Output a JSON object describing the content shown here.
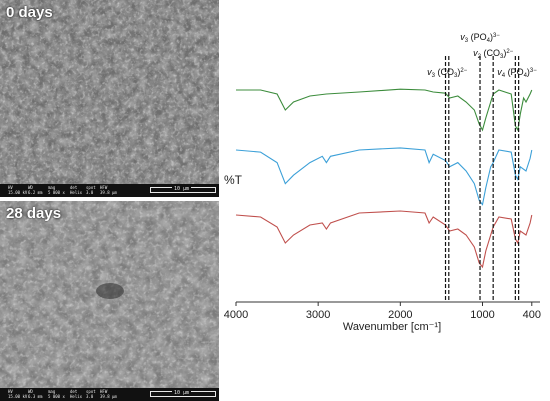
{
  "sem": {
    "top_label": "0 days",
    "bottom_label": "28 days",
    "databar_fields": [
      {
        "key": "HV",
        "top": "15.00 kV",
        "bottom": "15.00 kV"
      },
      {
        "key": "WD",
        "top": "6.2 mm",
        "bottom": "6.3 mm"
      },
      {
        "key": "mag",
        "top": "5 000 x",
        "bottom": "5 000 x"
      },
      {
        "key": "det",
        "top": "Helix",
        "bottom": "Helix"
      },
      {
        "key": "spot",
        "top": "3.0",
        "bottom": "3.0"
      },
      {
        "key": "HFW",
        "top": "39.8 µm",
        "bottom": "39.8 µm"
      }
    ],
    "scale_label": "10 µm"
  },
  "chart_data": {
    "type": "line",
    "ylabel": "%T",
    "xlabel": "Wavenumber [cm⁻¹]",
    "xlim": [
      4000,
      300
    ],
    "x_reversed": true,
    "x_ticks": [
      4000,
      3000,
      2000,
      1000,
      400
    ],
    "y_ticks_shown": false,
    "grid": false,
    "legend": "none",
    "series": [
      {
        "color": "#3c8c3c",
        "offset": 0,
        "points": [
          [
            4000,
            0
          ],
          [
            3700,
            0
          ],
          [
            3500,
            -0.1
          ],
          [
            3400,
            -0.5
          ],
          [
            3300,
            -0.3
          ],
          [
            3100,
            -0.15
          ],
          [
            2900,
            -0.1
          ],
          [
            2500,
            -0.05
          ],
          [
            2000,
            0.02
          ],
          [
            1700,
            0.0
          ],
          [
            1600,
            -0.05
          ],
          [
            1450,
            -0.08
          ],
          [
            1400,
            -0.2
          ],
          [
            1300,
            -0.15
          ],
          [
            1200,
            -0.3
          ],
          [
            1100,
            -0.5
          ],
          [
            1040,
            -0.85
          ],
          [
            1000,
            -1.0
          ],
          [
            960,
            -0.7
          ],
          [
            900,
            -0.3
          ],
          [
            870,
            -0.1
          ],
          [
            800,
            0.0
          ],
          [
            650,
            -0.1
          ],
          [
            600,
            -0.9
          ],
          [
            570,
            -1.0
          ],
          [
            540,
            -0.6
          ],
          [
            500,
            -0.2
          ],
          [
            470,
            -0.3
          ],
          [
            420,
            -0.1
          ],
          [
            400,
            0.0
          ]
        ]
      },
      {
        "color": "#3ca0d8",
        "offset": 1,
        "points": [
          [
            4000,
            0
          ],
          [
            3700,
            -0.05
          ],
          [
            3500,
            -0.3
          ],
          [
            3400,
            -0.8
          ],
          [
            3300,
            -0.6
          ],
          [
            3100,
            -0.3
          ],
          [
            2950,
            -0.15
          ],
          [
            2900,
            -0.3
          ],
          [
            2850,
            -0.15
          ],
          [
            2500,
            0.0
          ],
          [
            2000,
            0.05
          ],
          [
            1700,
            0.0
          ],
          [
            1650,
            -0.3
          ],
          [
            1600,
            -0.1
          ],
          [
            1450,
            -0.25
          ],
          [
            1400,
            -0.4
          ],
          [
            1300,
            -0.3
          ],
          [
            1200,
            -0.5
          ],
          [
            1100,
            -0.8
          ],
          [
            1040,
            -1.2
          ],
          [
            1000,
            -1.3
          ],
          [
            960,
            -0.9
          ],
          [
            900,
            -0.4
          ],
          [
            870,
            -0.3
          ],
          [
            800,
            0.0
          ],
          [
            650,
            -0.05
          ],
          [
            600,
            -0.6
          ],
          [
            570,
            -0.7
          ],
          [
            540,
            -0.4
          ],
          [
            470,
            -0.5
          ],
          [
            420,
            -0.2
          ],
          [
            400,
            0.0
          ]
        ]
      },
      {
        "color": "#c0504d",
        "offset": 2,
        "points": [
          [
            4000,
            0
          ],
          [
            3700,
            -0.05
          ],
          [
            3500,
            -0.3
          ],
          [
            3400,
            -0.7
          ],
          [
            3300,
            -0.5
          ],
          [
            3100,
            -0.25
          ],
          [
            2950,
            -0.2
          ],
          [
            2900,
            -0.35
          ],
          [
            2850,
            -0.2
          ],
          [
            2500,
            0.05
          ],
          [
            2000,
            0.1
          ],
          [
            1700,
            0.05
          ],
          [
            1650,
            -0.2
          ],
          [
            1600,
            -0.05
          ],
          [
            1450,
            -0.25
          ],
          [
            1400,
            -0.4
          ],
          [
            1300,
            -0.35
          ],
          [
            1200,
            -0.5
          ],
          [
            1100,
            -0.8
          ],
          [
            1040,
            -1.2
          ],
          [
            1000,
            -1.3
          ],
          [
            960,
            -0.9
          ],
          [
            900,
            -0.5
          ],
          [
            870,
            -0.3
          ],
          [
            800,
            -0.05
          ],
          [
            650,
            -0.1
          ],
          [
            600,
            -0.6
          ],
          [
            570,
            -0.7
          ],
          [
            540,
            -0.4
          ],
          [
            470,
            -0.5
          ],
          [
            420,
            -0.2
          ],
          [
            400,
            0.0
          ]
        ]
      }
    ],
    "marker_lines": [
      1450,
      1410,
      1030,
      870,
      600,
      560
    ],
    "annotations": [
      {
        "sub": "3",
        "group": "CO",
        "group_sub": "3",
        "charge": "2−",
        "level": 2
      },
      {
        "sub": "3",
        "group": "PO",
        "group_sub": "4",
        "charge": "3−",
        "level": 0
      },
      {
        "sub": "2",
        "group": "CO",
        "group_sub": "3",
        "charge": "2−",
        "level": 1
      },
      {
        "sub": "4",
        "group": "PO",
        "group_sub": "4",
        "charge": "3−",
        "level": 2
      }
    ]
  }
}
